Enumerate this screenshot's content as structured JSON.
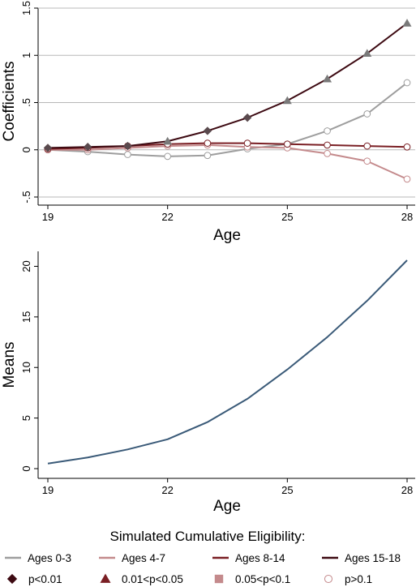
{
  "chart_data": [
    {
      "type": "line",
      "xlabel": "Age",
      "ylabel": "Coefficients",
      "x": [
        19,
        20,
        21,
        22,
        23,
        24,
        25,
        26,
        27,
        28
      ],
      "xticks": [
        19,
        22,
        25,
        28
      ],
      "xlim": [
        19,
        28
      ],
      "ylim": [
        -0.5,
        1.5
      ],
      "yticks": [
        {
          "value": 1.5,
          "label": "1.5"
        },
        {
          "value": 1,
          "label": "1"
        },
        {
          "value": 0.5,
          "label": ".5"
        },
        {
          "value": 0,
          "label": "0"
        },
        {
          "value": -0.5,
          "label": "-.5"
        }
      ],
      "grid": true,
      "series": [
        {
          "name": "Ages 0-3",
          "color": "#9e9e9e",
          "values": [
            0.0,
            -0.02,
            -0.05,
            -0.07,
            -0.06,
            0.01,
            0.06,
            0.2,
            0.38,
            0.71
          ],
          "markers": [
            "circle",
            "circle",
            "circle",
            "circle",
            "circle",
            "circle",
            "circle",
            "circle",
            "circle",
            "circle"
          ]
        },
        {
          "name": "Ages 4-7",
          "color": "#c48a8c",
          "values": [
            0.0,
            0.0,
            0.02,
            0.04,
            0.05,
            0.03,
            0.02,
            -0.04,
            -0.12,
            -0.31
          ],
          "markers": [
            "circle",
            "circle",
            "circle",
            "circle",
            "circle",
            "circle",
            "circle",
            "circle",
            "circle",
            "circle"
          ]
        },
        {
          "name": "Ages 8-14",
          "color": "#7a1f24",
          "values": [
            0.01,
            0.02,
            0.04,
            0.06,
            0.07,
            0.07,
            0.06,
            0.05,
            0.04,
            0.03
          ],
          "markers": [
            "circle",
            "circle",
            "circle",
            "circle",
            "circle",
            "circle",
            "circle",
            "circle",
            "circle",
            "circle"
          ]
        },
        {
          "name": "Ages 15-18",
          "color": "#3d0a12",
          "values": [
            0.02,
            0.03,
            0.04,
            0.09,
            0.2,
            0.34,
            0.52,
            0.75,
            1.02,
            1.34
          ],
          "markers": [
            "diamond",
            "diamond",
            "diamond",
            "triangle",
            "diamond",
            "diamond",
            "triangle",
            "triangle",
            "triangle",
            "triangle"
          ]
        }
      ]
    },
    {
      "type": "line",
      "xlabel": "Age",
      "ylabel": "Means",
      "x": [
        19,
        20,
        21,
        22,
        23,
        24,
        25,
        26,
        27,
        28
      ],
      "xticks": [
        19,
        22,
        25,
        28
      ],
      "xlim": [
        19,
        28
      ],
      "ylim": [
        0,
        21
      ],
      "yticks": [
        {
          "value": 0,
          "label": "0"
        },
        {
          "value": 5,
          "label": "5"
        },
        {
          "value": 10,
          "label": "10"
        },
        {
          "value": 15,
          "label": "15"
        },
        {
          "value": 20,
          "label": "20"
        }
      ],
      "grid": false,
      "series": [
        {
          "color": "#3a5a78",
          "values": [
            0.5,
            1.1,
            1.9,
            2.9,
            4.6,
            6.9,
            9.8,
            13.0,
            16.6,
            20.6
          ]
        }
      ]
    }
  ],
  "legend": {
    "title": "Simulated Cumulative Eligibility:",
    "placement": "bottom",
    "lines": [
      {
        "label": "Ages 0-3",
        "color": "#9e9e9e"
      },
      {
        "label": "Ages 4-7",
        "color": "#c48a8c"
      },
      {
        "label": "Ages 8-14",
        "color": "#7a1f24"
      },
      {
        "label": "Ages 15-18",
        "color": "#3d0a12"
      }
    ],
    "markers": [
      {
        "label": "p<0.01",
        "shape": "diamond",
        "color": "#3d0a12"
      },
      {
        "label": "0.01<p<0.05",
        "shape": "triangle",
        "color": "#7a1f24"
      },
      {
        "label": "0.05<p<0.1",
        "shape": "square",
        "color": "#c48a8c"
      },
      {
        "label": "p>0.1",
        "shape": "circle",
        "color": "#c48a8c"
      }
    ]
  }
}
